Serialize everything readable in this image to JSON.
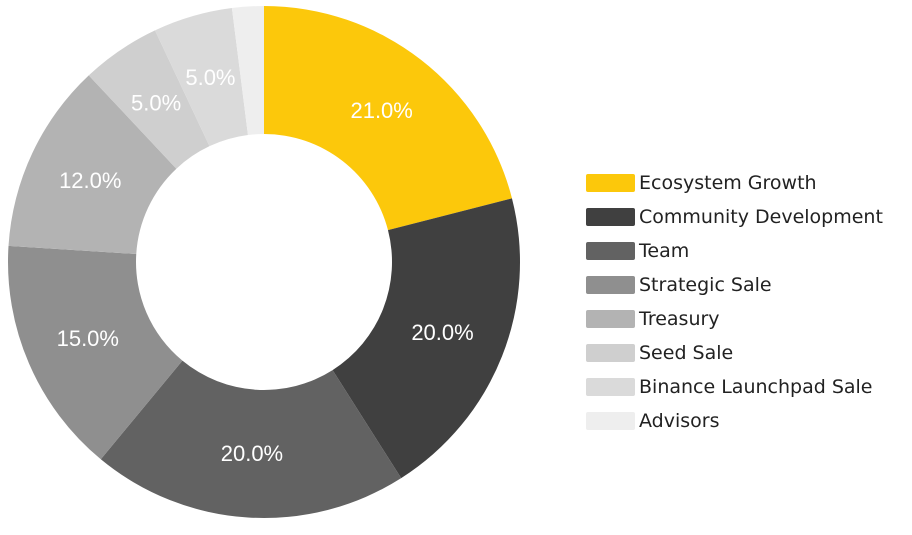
{
  "chart_data": {
    "type": "pie",
    "title": "",
    "categories": [
      "Ecosystem Growth",
      "Community Development",
      "Team",
      "Strategic Sale",
      "Treasury",
      "Seed Sale",
      "Binance Launchpad Sale",
      "Advisors"
    ],
    "values": [
      21,
      20,
      20,
      15,
      12,
      5,
      5,
      2
    ],
    "data_labels": [
      "21.0%",
      "20.0%",
      "20.0%",
      "15.0%",
      "12.0%",
      "5.0%",
      "5.0%",
      ""
    ],
    "colors": [
      "#fcc80b",
      "#404040",
      "#626262",
      "#8f8f8f",
      "#b3b3b3",
      "#cfcfcf",
      "#dadada",
      "#eeeeee"
    ],
    "legend_position": "right"
  }
}
